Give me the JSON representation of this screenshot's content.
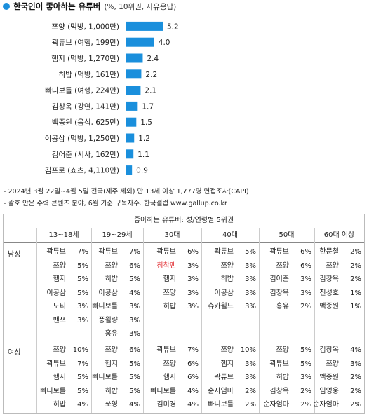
{
  "title": {
    "main": "한국인이 좋아하는 유튜버",
    "sub": "(%, 10위권, 자유응답)"
  },
  "chart_data": {
    "type": "bar",
    "orientation": "horizontal",
    "categories": [
      "쯔양 (먹방, 1,000만)",
      "곽튜브 (여행, 199만)",
      "햄지 (먹방, 1,270만)",
      "히밥 (먹방, 161만)",
      "빠니보틀 (여행, 224만)",
      "김창옥 (강연, 141만)",
      "백종원 (음식, 625만)",
      "이공삼 (먹방, 1,250만)",
      "김어준 (시사, 162만)",
      "김프로 (쇼츠, 4,110만)"
    ],
    "values": [
      5.2,
      4.0,
      2.4,
      2.2,
      2.1,
      1.7,
      1.5,
      1.2,
      1.1,
      0.9
    ],
    "value_labels": [
      "5.2",
      "4.0",
      "2.4",
      "2.2",
      "2.1",
      "1.7",
      "1.5",
      "1.2",
      "1.1",
      "0.9"
    ],
    "bar_color": "#1a8fdc",
    "xlim": [
      0,
      5.2
    ],
    "grid": false,
    "legend": "none"
  },
  "notes": [
    "- 2024년 3월 22일~4월 5일 전국(제주 제외) 만 13세 이상 1,777명 면접조사(CAPI)",
    "- 괄호 안은 주력 콘텐츠 분야, 6월 기준 구독자수. 한국갤럽 www.gallup.co.kr"
  ],
  "table": {
    "title": "좋아하는 유튜버: 성/연령별 5위권",
    "columns": [
      "13~18세",
      "19~29세",
      "30대",
      "40대",
      "50대",
      "60대 이상"
    ],
    "rows": [
      {
        "label": "남성",
        "columns": [
          [
            {
              "name": "곽튜브",
              "pct": "7%"
            },
            {
              "name": "쯔양",
              "pct": "5%"
            },
            {
              "name": "햄지",
              "pct": "5%"
            },
            {
              "name": "이공삼",
              "pct": "5%"
            },
            {
              "name": "도티",
              "pct": "3%"
            },
            {
              "name": "밴쯔",
              "pct": "3%"
            }
          ],
          [
            {
              "name": "곽튜브",
              "pct": "7%"
            },
            {
              "name": "쯔양",
              "pct": "6%"
            },
            {
              "name": "히밥",
              "pct": "5%"
            },
            {
              "name": "이공삼",
              "pct": "4%"
            },
            {
              "name": "빠니보틀",
              "pct": "3%"
            },
            {
              "name": "풍월량",
              "pct": "3%"
            },
            {
              "name": "홍유",
              "pct": "3%"
            }
          ],
          [
            {
              "name": "곽튜브",
              "pct": "6%"
            },
            {
              "name": "침착맨",
              "pct": "3%",
              "hl": true
            },
            {
              "name": "햄지",
              "pct": "3%"
            },
            {
              "name": "쯔양",
              "pct": "3%"
            },
            {
              "name": "히밥",
              "pct": "3%"
            }
          ],
          [
            {
              "name": "곽튜브",
              "pct": "5%"
            },
            {
              "name": "쯔양",
              "pct": "3%"
            },
            {
              "name": "히밥",
              "pct": "3%"
            },
            {
              "name": "이공삼",
              "pct": "3%"
            },
            {
              "name": "슈카월드",
              "pct": "3%"
            }
          ],
          [
            {
              "name": "곽튜브",
              "pct": "6%"
            },
            {
              "name": "쯔양",
              "pct": "6%"
            },
            {
              "name": "김어준",
              "pct": "3%"
            },
            {
              "name": "김창옥",
              "pct": "3%"
            },
            {
              "name": "홍유",
              "pct": "2%"
            }
          ],
          [
            {
              "name": "한문철",
              "pct": "2%"
            },
            {
              "name": "쯔양",
              "pct": "2%"
            },
            {
              "name": "김창옥",
              "pct": "2%"
            },
            {
              "name": "진성호",
              "pct": "1%"
            },
            {
              "name": "백종원",
              "pct": "1%"
            }
          ]
        ]
      },
      {
        "label": "여성",
        "columns": [
          [
            {
              "name": "쯔양",
              "pct": "10%"
            },
            {
              "name": "곽튜브",
              "pct": "7%"
            },
            {
              "name": "햄지",
              "pct": "5%"
            },
            {
              "name": "빠니보틀",
              "pct": "5%"
            },
            {
              "name": "히밥",
              "pct": "4%"
            }
          ],
          [
            {
              "name": "쯔양",
              "pct": "6%"
            },
            {
              "name": "햄지",
              "pct": "5%"
            },
            {
              "name": "빠니보틀",
              "pct": "5%"
            },
            {
              "name": "히밥",
              "pct": "5%"
            },
            {
              "name": "쏘영",
              "pct": "4%"
            }
          ],
          [
            {
              "name": "곽튜브",
              "pct": "7%"
            },
            {
              "name": "쯔양",
              "pct": "6%"
            },
            {
              "name": "햄지",
              "pct": "6%"
            },
            {
              "name": "빠니보틀",
              "pct": "4%"
            },
            {
              "name": "김미경",
              "pct": "4%"
            }
          ],
          [
            {
              "name": "쯔양",
              "pct": "10%"
            },
            {
              "name": "햄지",
              "pct": "3%"
            },
            {
              "name": "곽튜브",
              "pct": "3%"
            },
            {
              "name": "순자엄마",
              "pct": "2%"
            },
            {
              "name": "빠니보틀",
              "pct": "2%"
            }
          ],
          [
            {
              "name": "쯔양",
              "pct": "5%"
            },
            {
              "name": "곽튜브",
              "pct": "5%"
            },
            {
              "name": "히밥",
              "pct": "3%"
            },
            {
              "name": "김창옥",
              "pct": "2%"
            },
            {
              "name": "순자엄마",
              "pct": "2%"
            }
          ],
          [
            {
              "name": "김창옥",
              "pct": "4%"
            },
            {
              "name": "쯔양",
              "pct": "3%"
            },
            {
              "name": "백종원",
              "pct": "2%"
            },
            {
              "name": "임영웅",
              "pct": "2%"
            },
            {
              "name": "순자엄마",
              "pct": "2%"
            }
          ]
        ]
      }
    ],
    "highlight_color": "#e0262b"
  }
}
